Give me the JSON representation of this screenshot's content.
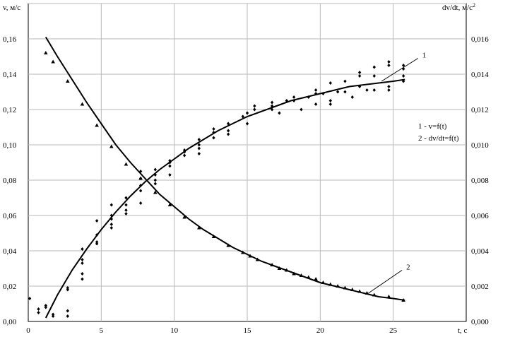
{
  "chart_data": {
    "type": "scatter",
    "ylabel_left": "v, м/с",
    "ylabel_right": "dv/dt, м/с²",
    "xlabel": "t, с",
    "xlim": [
      0,
      30
    ],
    "ylim_left": [
      0,
      0.18
    ],
    "ylim_right": [
      0,
      0.018
    ],
    "grid": true,
    "x_ticks": [
      "0",
      "5",
      "10",
      "15",
      "20",
      "25"
    ],
    "y_left_ticks": [
      "0,00",
      "0,02",
      "0,04",
      "0,06",
      "0,08",
      "0,10",
      "0,12",
      "0,14",
      "0,16"
    ],
    "y_right_ticks": [
      "0,000",
      "0,002",
      "0,004",
      "0,006",
      "0,008",
      "0,010",
      "0,012",
      "0,014",
      "0,016"
    ],
    "legend": [
      "1 - v=f(t)",
      "2 - dv/dt=f(t)"
    ],
    "curve_labels": [
      "1",
      "2"
    ],
    "series": [
      {
        "name": "v=f(t)",
        "axis": "left",
        "marker": "diamond",
        "points": [
          [
            0.1,
            0.013
          ],
          [
            0.7,
            0.005
          ],
          [
            0.7,
            0.007
          ],
          [
            1.2,
            0.008
          ],
          [
            1.2,
            0.009
          ],
          [
            1.7,
            0.004
          ],
          [
            1.7,
            0.003
          ],
          [
            2.7,
            0.018
          ],
          [
            2.7,
            0.019
          ],
          [
            2.7,
            0.006
          ],
          [
            2.7,
            0.003
          ],
          [
            3.7,
            0.041
          ],
          [
            3.7,
            0.035
          ],
          [
            3.7,
            0.033
          ],
          [
            3.7,
            0.027
          ],
          [
            3.7,
            0.024
          ],
          [
            4.7,
            0.057
          ],
          [
            4.7,
            0.049
          ],
          [
            4.7,
            0.045
          ],
          [
            4.7,
            0.044
          ],
          [
            5.7,
            0.066
          ],
          [
            5.7,
            0.06
          ],
          [
            5.7,
            0.058
          ],
          [
            5.7,
            0.055
          ],
          [
            5.7,
            0.053
          ],
          [
            6.7,
            0.07
          ],
          [
            6.7,
            0.066
          ],
          [
            6.7,
            0.063
          ],
          [
            6.7,
            0.061
          ],
          [
            7.7,
            0.085
          ],
          [
            7.7,
            0.081
          ],
          [
            7.7,
            0.077
          ],
          [
            7.7,
            0.074
          ],
          [
            7.7,
            0.067
          ],
          [
            8.7,
            0.086
          ],
          [
            8.7,
            0.083
          ],
          [
            8.7,
            0.08
          ],
          [
            8.7,
            0.078
          ],
          [
            9.7,
            0.091
          ],
          [
            9.7,
            0.09
          ],
          [
            9.7,
            0.088
          ],
          [
            9.7,
            0.083
          ],
          [
            10.7,
            0.097
          ],
          [
            10.7,
            0.096
          ],
          [
            10.7,
            0.094
          ],
          [
            11.7,
            0.103
          ],
          [
            11.7,
            0.1
          ],
          [
            11.7,
            0.098
          ],
          [
            11.7,
            0.095
          ],
          [
            12.7,
            0.109
          ],
          [
            12.7,
            0.107
          ],
          [
            12.7,
            0.104
          ],
          [
            13.7,
            0.112
          ],
          [
            13.7,
            0.108
          ],
          [
            13.7,
            0.106
          ],
          [
            14.7,
            0.116
          ],
          [
            15.0,
            0.118
          ],
          [
            15.0,
            0.112
          ],
          [
            15.5,
            0.122
          ],
          [
            15.5,
            0.12
          ],
          [
            16.7,
            0.124
          ],
          [
            16.7,
            0.122
          ],
          [
            16.7,
            0.12
          ],
          [
            17.2,
            0.118
          ],
          [
            17.7,
            0.125
          ],
          [
            18.2,
            0.127
          ],
          [
            18.2,
            0.125
          ],
          [
            18.7,
            0.12
          ],
          [
            19.2,
            0.127
          ],
          [
            19.7,
            0.131
          ],
          [
            19.7,
            0.129
          ],
          [
            19.7,
            0.123
          ],
          [
            20.2,
            0.129
          ],
          [
            20.7,
            0.135
          ],
          [
            20.7,
            0.125
          ],
          [
            20.7,
            0.123
          ],
          [
            21.2,
            0.13
          ],
          [
            21.7,
            0.136
          ],
          [
            21.7,
            0.13
          ],
          [
            22.2,
            0.127
          ],
          [
            22.7,
            0.141
          ],
          [
            22.7,
            0.139
          ],
          [
            22.7,
            0.133
          ],
          [
            23.2,
            0.131
          ],
          [
            23.7,
            0.144
          ],
          [
            23.7,
            0.139
          ],
          [
            23.7,
            0.131
          ],
          [
            24.7,
            0.147
          ],
          [
            24.7,
            0.145
          ],
          [
            24.7,
            0.133
          ],
          [
            24.7,
            0.131
          ],
          [
            25.7,
            0.145
          ],
          [
            25.7,
            0.143
          ],
          [
            25.7,
            0.139
          ],
          [
            25.7,
            0.136
          ]
        ],
        "fit_curve": [
          [
            1.2,
            0.002
          ],
          [
            2,
            0.015
          ],
          [
            3,
            0.029
          ],
          [
            4,
            0.041
          ],
          [
            5,
            0.052
          ],
          [
            6,
            0.062
          ],
          [
            7,
            0.071
          ],
          [
            8,
            0.079
          ],
          [
            9,
            0.086
          ],
          [
            10,
            0.092
          ],
          [
            11,
            0.098
          ],
          [
            12,
            0.103
          ],
          [
            13,
            0.108
          ],
          [
            14,
            0.112
          ],
          [
            15,
            0.116
          ],
          [
            16,
            0.119
          ],
          [
            17,
            0.122
          ],
          [
            18,
            0.125
          ],
          [
            19,
            0.127
          ],
          [
            20,
            0.129
          ],
          [
            21,
            0.131
          ],
          [
            22,
            0.133
          ],
          [
            23,
            0.134
          ],
          [
            24,
            0.135
          ],
          [
            25,
            0.136
          ],
          [
            25.8,
            0.137
          ]
        ]
      },
      {
        "name": "dv/dt=f(t)",
        "axis": "right",
        "marker": "triangle",
        "points": [
          [
            1.2,
            0.0152
          ],
          [
            1.7,
            0.0147
          ],
          [
            2.7,
            0.0136
          ],
          [
            3.7,
            0.0123
          ],
          [
            4.7,
            0.0111
          ],
          [
            5.7,
            0.0099
          ],
          [
            6.7,
            0.0089
          ],
          [
            7.7,
            0.0081
          ],
          [
            8.7,
            0.0073
          ],
          [
            9.7,
            0.0066
          ],
          [
            10.7,
            0.0059
          ],
          [
            11.7,
            0.0053
          ],
          [
            12.7,
            0.0048
          ],
          [
            13.7,
            0.0043
          ],
          [
            14.7,
            0.0039
          ],
          [
            15.2,
            0.0037
          ],
          [
            15.7,
            0.0035
          ],
          [
            16.7,
            0.0032
          ],
          [
            17.2,
            0.003
          ],
          [
            17.7,
            0.0029
          ],
          [
            18.2,
            0.0027
          ],
          [
            18.7,
            0.0026
          ],
          [
            19.2,
            0.0025
          ],
          [
            19.7,
            0.0024
          ],
          [
            20.2,
            0.0022
          ],
          [
            20.7,
            0.0021
          ],
          [
            21.2,
            0.002
          ],
          [
            21.7,
            0.0019
          ],
          [
            22.2,
            0.0018
          ],
          [
            22.7,
            0.0017
          ],
          [
            23.2,
            0.0016
          ],
          [
            23.7,
            0.0015
          ],
          [
            24.7,
            0.0014
          ],
          [
            25.7,
            0.0012
          ]
        ],
        "fit_curve": [
          [
            1.2,
            0.0161
          ],
          [
            2,
            0.015
          ],
          [
            3,
            0.0137
          ],
          [
            4,
            0.0124
          ],
          [
            5,
            0.0112
          ],
          [
            6,
            0.01
          ],
          [
            7,
            0.009
          ],
          [
            8,
            0.0081
          ],
          [
            9,
            0.0072
          ],
          [
            10,
            0.0065
          ],
          [
            11,
            0.0058
          ],
          [
            12,
            0.0052
          ],
          [
            13,
            0.0047
          ],
          [
            14,
            0.0042
          ],
          [
            15,
            0.0038
          ],
          [
            16,
            0.0034
          ],
          [
            17,
            0.0031
          ],
          [
            18,
            0.0028
          ],
          [
            19,
            0.0025
          ],
          [
            20,
            0.0022
          ],
          [
            21,
            0.002
          ],
          [
            22,
            0.0018
          ],
          [
            23,
            0.0016
          ],
          [
            24,
            0.0014
          ],
          [
            25,
            0.0013
          ],
          [
            25.8,
            0.0012
          ]
        ]
      }
    ]
  }
}
